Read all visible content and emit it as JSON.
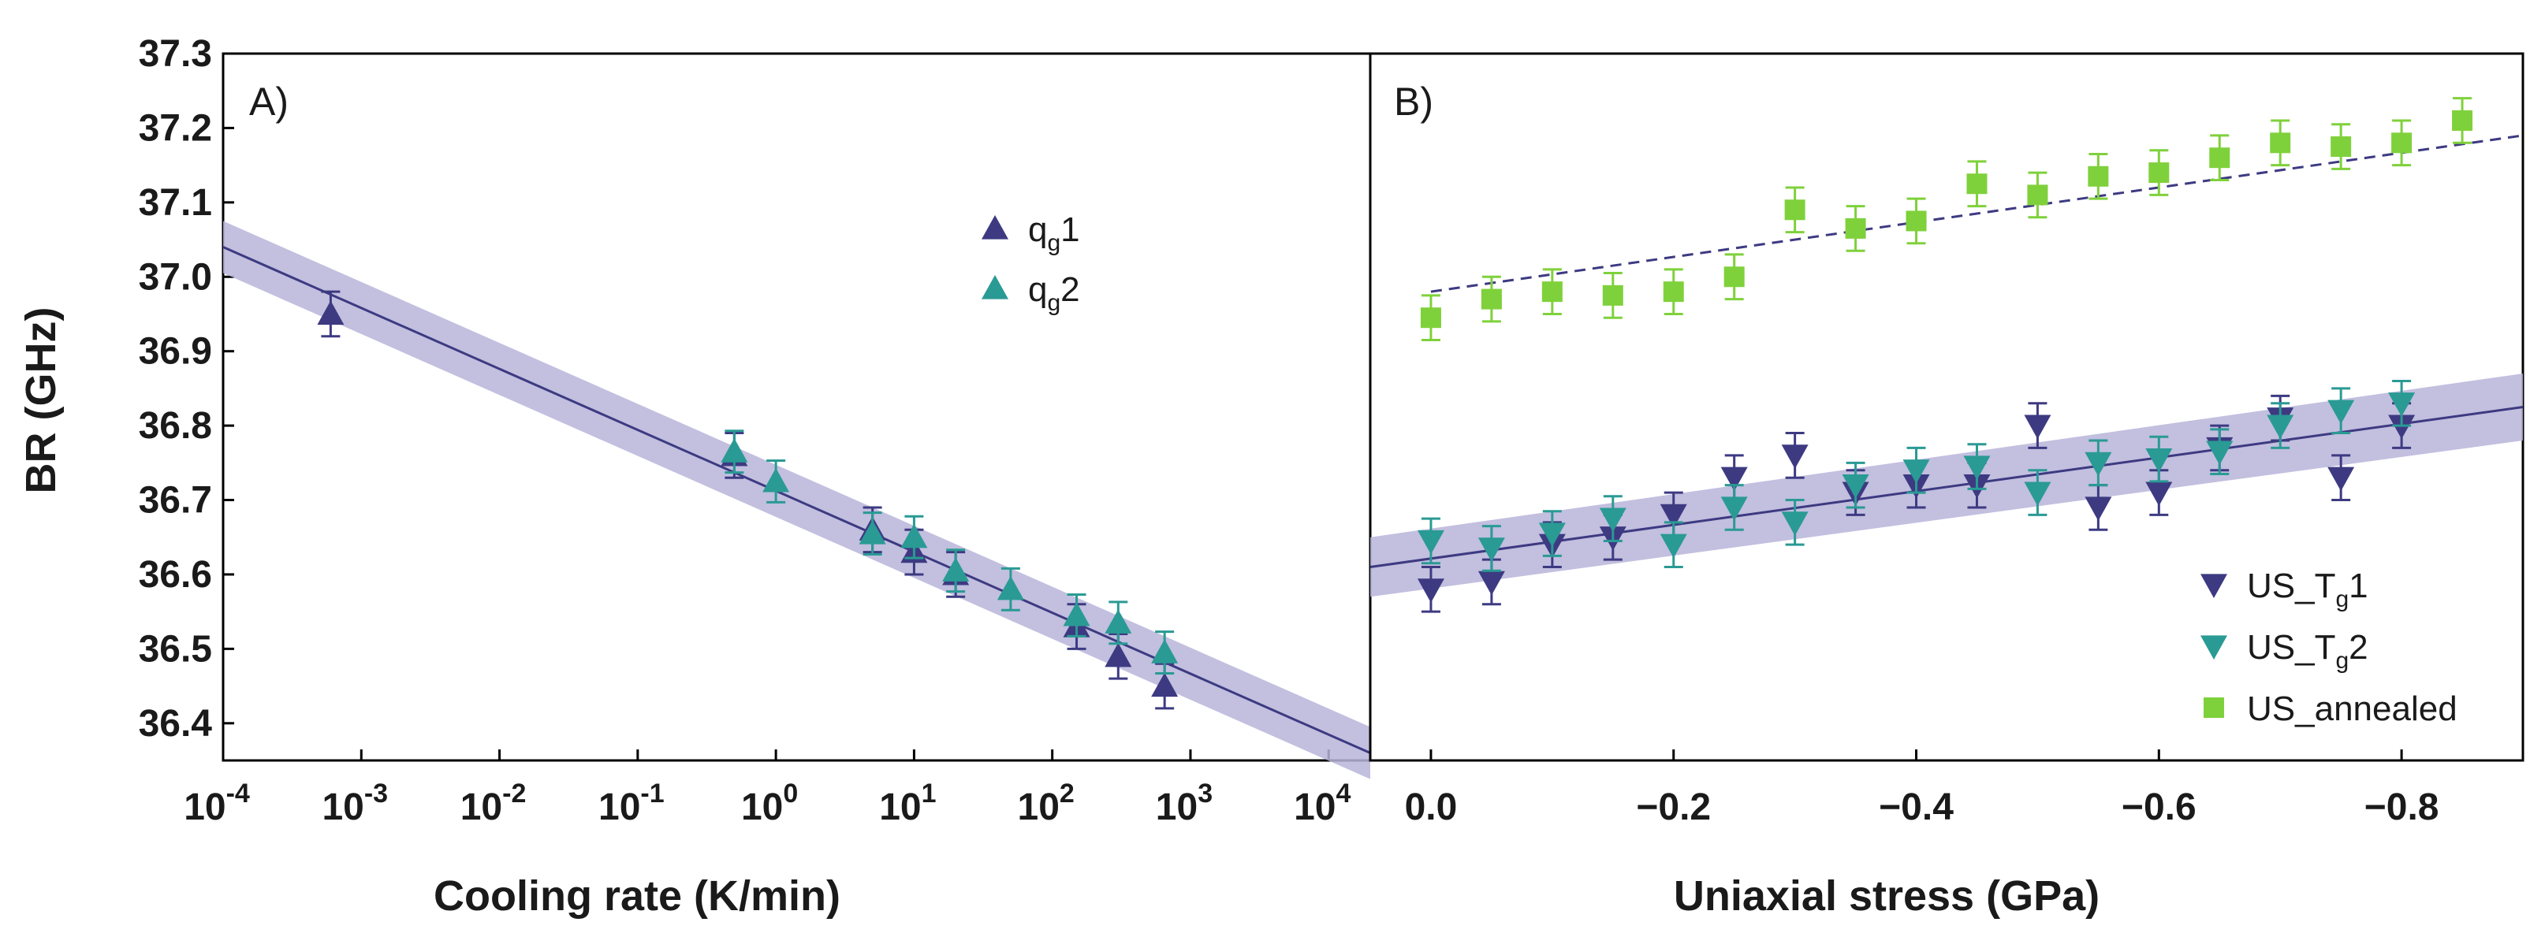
{
  "y_axis": {
    "label": "BR (GHz)",
    "ticks": [
      "36.4",
      "36.5",
      "36.6",
      "36.7",
      "36.8",
      "36.9",
      "37.0",
      "37.1",
      "37.2",
      "37.3"
    ]
  },
  "chart_data": [
    {
      "type": "scatter",
      "panel": "A)",
      "xscale": "log",
      "xlabel": "Cooling rate (K/min)",
      "ylabel": "BR (GHz)",
      "xlim": [
        0.0001,
        20000
      ],
      "ylim": [
        36.35,
        37.3
      ],
      "xtick_values": [
        0.0001,
        0.001,
        0.01,
        0.1,
        1,
        10,
        100,
        1000,
        10000
      ],
      "xtick_exponents": [
        "-4",
        "-3",
        "-2",
        "-1",
        "0",
        "1",
        "2",
        "3",
        "4"
      ],
      "legend_position": "upper-center",
      "series": [
        {
          "name": "qg1",
          "label_main": "q",
          "label_sub": "g",
          "label_tail": "1",
          "marker": "triangle-up",
          "color": "#3d3a82",
          "x": [
            0.0006,
            0.5,
            5,
            10,
            20,
            150,
            300,
            650
          ],
          "y": [
            36.95,
            36.76,
            36.66,
            36.63,
            36.6,
            36.53,
            36.49,
            36.45
          ],
          "err": 0.03
        },
        {
          "name": "qg2",
          "label_main": "q",
          "label_sub": "g",
          "label_tail": "2",
          "marker": "triangle-up",
          "color": "#2a9a94",
          "x": [
            0.5,
            1,
            5,
            10,
            20,
            50,
            150,
            300,
            650
          ],
          "y": [
            36.765,
            36.725,
            36.655,
            36.65,
            36.605,
            36.58,
            36.545,
            36.535,
            36.495
          ],
          "err": 0.028
        }
      ],
      "fit": {
        "x": [
          0.0001,
          20000
        ],
        "y": [
          37.04,
          36.36
        ],
        "band": 0.035,
        "color": "#3d3a82",
        "band_color": "#b7b4d9"
      }
    },
    {
      "type": "scatter",
      "panel": "B)",
      "xscale": "linear",
      "xlabel": "Uniaxial stress (GPa)",
      "ylabel": "BR (GHz)",
      "xlim": [
        0.05,
        -0.9
      ],
      "ylim": [
        36.35,
        37.3
      ],
      "xtick_values": [
        0.0,
        -0.2,
        -0.4,
        -0.6,
        -0.8
      ],
      "xtick_labels": [
        "0.0",
        "−0.2",
        "−0.4",
        "−0.6",
        "−0.8"
      ],
      "legend_position": "lower-right",
      "series": [
        {
          "name": "US_Tg1",
          "label_main": "US_T",
          "label_sub": "g",
          "label_tail": "1",
          "marker": "triangle-down",
          "color": "#3d3a82",
          "x": [
            0.0,
            -0.05,
            -0.1,
            -0.15,
            -0.2,
            -0.25,
            -0.3,
            -0.35,
            -0.4,
            -0.45,
            -0.5,
            -0.55,
            -0.6,
            -0.65,
            -0.7,
            -0.75,
            -0.8
          ],
          "y": [
            36.58,
            36.59,
            36.64,
            36.65,
            36.68,
            36.73,
            36.76,
            36.71,
            36.72,
            36.72,
            36.8,
            36.69,
            36.71,
            36.77,
            36.81,
            36.73,
            36.8
          ],
          "err": 0.03
        },
        {
          "name": "US_Tg2",
          "label_main": "US_T",
          "label_sub": "g",
          "label_tail": "2",
          "marker": "triangle-down",
          "color": "#2a9a94",
          "x": [
            0.0,
            -0.05,
            -0.1,
            -0.15,
            -0.2,
            -0.25,
            -0.3,
            -0.35,
            -0.4,
            -0.45,
            -0.5,
            -0.55,
            -0.6,
            -0.65,
            -0.7,
            -0.75,
            -0.8
          ],
          "y": [
            36.645,
            36.635,
            36.655,
            36.675,
            36.64,
            36.69,
            36.67,
            36.72,
            36.74,
            36.745,
            36.71,
            36.75,
            36.755,
            36.765,
            36.8,
            36.82,
            36.83
          ],
          "err": 0.03
        },
        {
          "name": "US_annealed",
          "label_main": "US_annealed",
          "label_sub": "",
          "label_tail": "",
          "marker": "square",
          "color": "#7fd13b",
          "x": [
            0.0,
            -0.05,
            -0.1,
            -0.15,
            -0.2,
            -0.25,
            -0.3,
            -0.35,
            -0.4,
            -0.45,
            -0.5,
            -0.55,
            -0.6,
            -0.65,
            -0.7,
            -0.75,
            -0.8,
            -0.85
          ],
          "y": [
            36.945,
            36.97,
            36.98,
            36.975,
            36.98,
            37.0,
            37.09,
            37.065,
            37.075,
            37.125,
            37.11,
            37.135,
            37.14,
            37.16,
            37.18,
            37.175,
            37.18,
            37.21
          ],
          "err": 0.03
        }
      ],
      "fit": {
        "x": [
          0.05,
          -0.9
        ],
        "y": [
          36.61,
          36.825
        ],
        "band_start": 0.04,
        "band_end": 0.045,
        "color": "#3d3a82",
        "band_color": "#b7b4d9"
      },
      "dashed_fit": {
        "x": [
          0.0,
          -0.9
        ],
        "y": [
          36.98,
          37.19
        ],
        "color": "#3d3a82"
      }
    }
  ]
}
